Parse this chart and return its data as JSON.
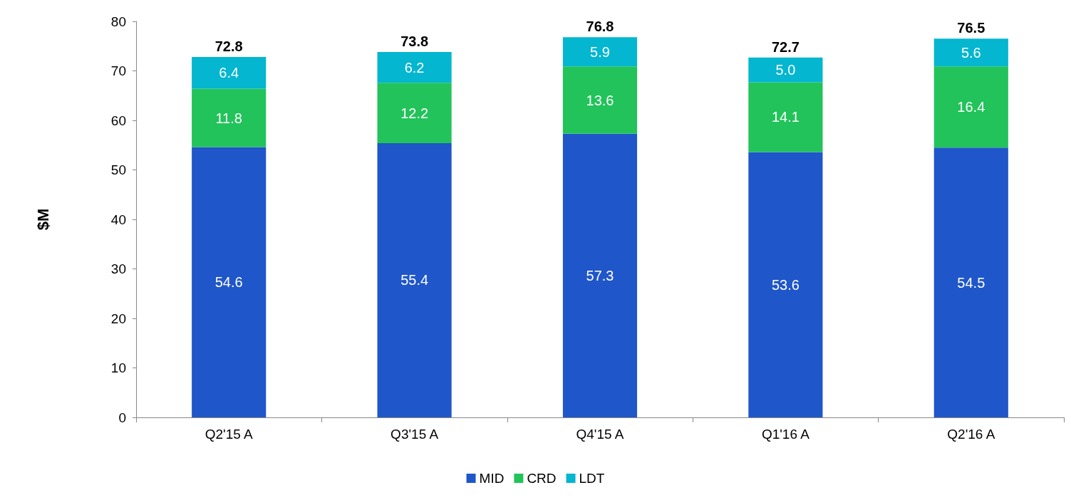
{
  "chart_data": {
    "type": "bar",
    "stacked": true,
    "ylabel": "$M",
    "categories": [
      "Q2'15 A",
      "Q3'15 A",
      "Q4'15 A",
      "Q1'16 A",
      "Q2'16 A"
    ],
    "series": [
      {
        "name": "MID",
        "color": "#1f56c9",
        "values": [
          54.6,
          55.4,
          57.3,
          53.6,
          54.5
        ]
      },
      {
        "name": "CRD",
        "color": "#22c35a",
        "values": [
          11.8,
          12.2,
          13.6,
          14.1,
          16.4
        ]
      },
      {
        "name": "LDT",
        "color": "#04b6cf",
        "values": [
          6.4,
          6.2,
          5.9,
          5.0,
          5.6
        ],
        "value_labels": [
          "6.4",
          "6.2",
          "5.9",
          "5.0",
          "5.6"
        ]
      }
    ],
    "totals": [
      "72.8",
      "73.8",
      "76.8",
      "72.7",
      "76.5"
    ],
    "data_labels": true,
    "ylim": [
      0,
      80
    ],
    "yticks": [
      0,
      10,
      20,
      30,
      40,
      50,
      60,
      70,
      80
    ],
    "grid": false,
    "legend": "bottom"
  }
}
